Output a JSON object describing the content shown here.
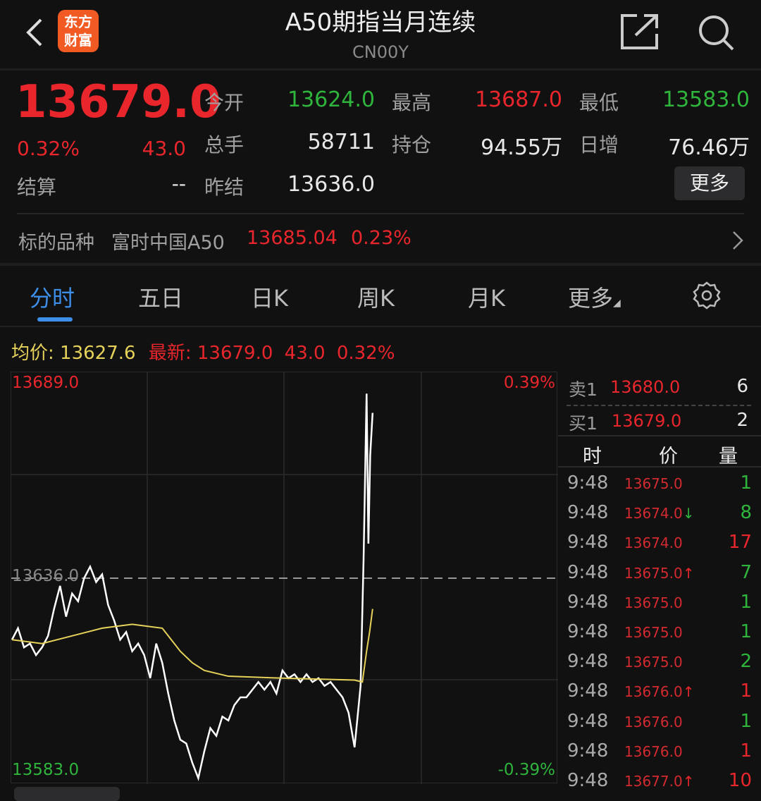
{
  "header": {
    "title": "A50期指当月连续",
    "code": "CN00Y",
    "logo_text": "东方财富",
    "icons": [
      "back-icon",
      "share-icon",
      "search-icon"
    ]
  },
  "quote": {
    "price": "13679.0",
    "change_pct": "0.32%",
    "change": "43.0",
    "settle_label": "结算",
    "settle": "--",
    "fields": [
      {
        "label": "今开",
        "value": "13624.0",
        "color": "green"
      },
      {
        "label": "最高",
        "value": "13687.0",
        "color": "red"
      },
      {
        "label": "最低",
        "value": "13583.0",
        "color": "green"
      },
      {
        "label": "总手",
        "value": "58711",
        "color": "white"
      },
      {
        "label": "持仓",
        "value": "94.55万",
        "color": "white"
      },
      {
        "label": "日增",
        "value": "76.46万",
        "color": "white"
      },
      {
        "label": "昨结",
        "value": "13636.0",
        "color": "white"
      }
    ],
    "more": "更多"
  },
  "underlying": {
    "label": "标的品种",
    "name": "富时中国A50",
    "price": "13685.04",
    "pct": "0.23%"
  },
  "tabs": [
    "分时",
    "五日",
    "日K",
    "周K",
    "月K",
    "更多"
  ],
  "active_tab": 0,
  "info": {
    "avg_label": "均价:",
    "avg": "13627.6",
    "last_label": "最新:",
    "last": "13679.0",
    "change": "43.0",
    "pct": "0.32%"
  },
  "chart_data": {
    "type": "line",
    "ylim": [
      13583.0,
      13689.0
    ],
    "ref_price": 13636.0,
    "y_labels": {
      "top": "13689.0",
      "mid": "13636.0",
      "bottom": "13583.0",
      "top_pct": "0.39%",
      "bottom_pct": "-0.39%"
    },
    "series": [
      {
        "key": "price",
        "color": "#ffffff",
        "points": [
          [
            0,
            13620
          ],
          [
            1,
            13623
          ],
          [
            2,
            13618
          ],
          [
            3,
            13619
          ],
          [
            4,
            13616
          ],
          [
            5,
            13618
          ],
          [
            6,
            13621
          ],
          [
            7,
            13628
          ],
          [
            8,
            13634
          ],
          [
            9,
            13626
          ],
          [
            10,
            13632
          ],
          [
            11,
            13630
          ],
          [
            12,
            13636
          ],
          [
            13,
            13639
          ],
          [
            14,
            13635
          ],
          [
            15,
            13637
          ],
          [
            16,
            13629
          ],
          [
            17,
            13625
          ],
          [
            18,
            13620
          ],
          [
            19,
            13622
          ],
          [
            20,
            13617
          ],
          [
            21,
            13619
          ],
          [
            22,
            13616
          ],
          [
            23,
            13610
          ],
          [
            24,
            13619
          ],
          [
            25,
            13614
          ],
          [
            26,
            13606
          ],
          [
            27,
            13599
          ],
          [
            28,
            13594
          ],
          [
            29,
            13593
          ],
          [
            30,
            13588
          ],
          [
            31,
            13584
          ],
          [
            32,
            13591
          ],
          [
            33,
            13597
          ],
          [
            34,
            13595
          ],
          [
            35,
            13600
          ],
          [
            36,
            13599
          ],
          [
            37,
            13603
          ],
          [
            38,
            13605
          ],
          [
            39,
            13605
          ],
          [
            40,
            13607
          ],
          [
            41,
            13609
          ],
          [
            42,
            13607
          ],
          [
            43,
            13609
          ],
          [
            44,
            13606
          ],
          [
            45,
            13612
          ],
          [
            46,
            13610
          ],
          [
            47,
            13611
          ],
          [
            48,
            13609
          ],
          [
            49,
            13611
          ],
          [
            50,
            13609
          ],
          [
            51,
            13610
          ],
          [
            52,
            13608
          ],
          [
            53,
            13609
          ],
          [
            54,
            13607
          ],
          [
            55,
            13605
          ],
          [
            56,
            13601
          ],
          [
            57,
            13592
          ],
          [
            58,
            13608
          ],
          [
            58.5,
            13641
          ],
          [
            59,
            13684
          ],
          [
            59.3,
            13645
          ],
          [
            59.6,
            13668
          ],
          [
            60,
            13679
          ]
        ]
      },
      {
        "key": "avg",
        "color": "#e6d25a",
        "points": [
          [
            0,
            13620
          ],
          [
            5,
            13619
          ],
          [
            10,
            13621
          ],
          [
            15,
            13623
          ],
          [
            20,
            13624
          ],
          [
            25,
            13623
          ],
          [
            26,
            13621
          ],
          [
            28,
            13617
          ],
          [
            30,
            13614
          ],
          [
            32,
            13612
          ],
          [
            36,
            13610.5
          ],
          [
            45,
            13610
          ],
          [
            57,
            13609.5
          ],
          [
            58.3,
            13609
          ],
          [
            59,
            13617
          ],
          [
            59.5,
            13622
          ],
          [
            60,
            13628
          ]
        ]
      }
    ]
  },
  "orderbook": {
    "ask": {
      "label": "卖1",
      "price": "13680.0",
      "qty": "6"
    },
    "bid": {
      "label": "买1",
      "price": "13679.0",
      "qty": "2"
    }
  },
  "ticks": {
    "headers": [
      "时",
      "价",
      "量"
    ],
    "rows": [
      {
        "time": "9:48",
        "price": "13675.0",
        "arrow": "",
        "qty": "1",
        "qc": "green"
      },
      {
        "time": "9:48",
        "price": "13674.0",
        "arrow": "↓",
        "qty": "8",
        "qc": "green"
      },
      {
        "time": "9:48",
        "price": "13674.0",
        "arrow": "",
        "qty": "17",
        "qc": "red"
      },
      {
        "time": "9:48",
        "price": "13675.0",
        "arrow": "↑",
        "qty": "7",
        "qc": "green"
      },
      {
        "time": "9:48",
        "price": "13675.0",
        "arrow": "",
        "qty": "1",
        "qc": "green"
      },
      {
        "time": "9:48",
        "price": "13675.0",
        "arrow": "",
        "qty": "1",
        "qc": "green"
      },
      {
        "time": "9:48",
        "price": "13675.0",
        "arrow": "",
        "qty": "2",
        "qc": "green"
      },
      {
        "time": "9:48",
        "price": "13676.0",
        "arrow": "↑",
        "qty": "1",
        "qc": "red"
      },
      {
        "time": "9:48",
        "price": "13676.0",
        "arrow": "",
        "qty": "1",
        "qc": "green"
      },
      {
        "time": "9:48",
        "price": "13676.0",
        "arrow": "",
        "qty": "1",
        "qc": "red"
      },
      {
        "time": "9:48",
        "price": "13677.0",
        "arrow": "↑",
        "qty": "10",
        "qc": "red"
      }
    ]
  }
}
